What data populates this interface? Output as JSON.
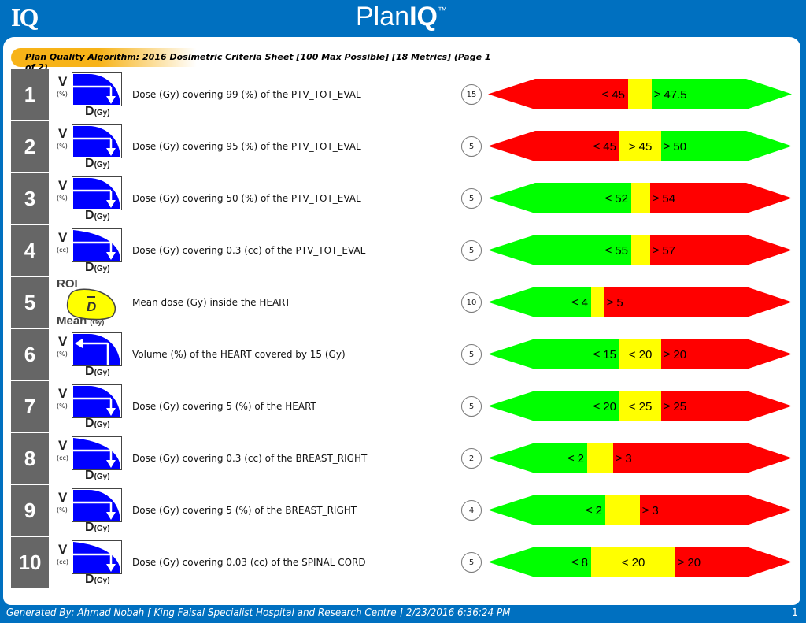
{
  "header": {
    "logo": "IQ",
    "brand_plan": "Plan",
    "brand_iq": "IQ",
    "brand_tm": "™"
  },
  "sheet_title": "Plan Quality Algorithm: 2016 Dosimetric Criteria Sheet [100 Max Possible] [18 Metrics] (Page 1 of 2)",
  "labels": {
    "v": "V",
    "d": "D",
    "gy": "(Gy)",
    "roi": "ROI",
    "mean": "Mean",
    "dbar": "D"
  },
  "colors": {
    "red": "#ff0000",
    "yellow": "#ffff00",
    "green": "#00ff00",
    "brand_blue": "#0070c0",
    "icon_blue": "#0000ff"
  },
  "metrics": [
    {
      "num": "1",
      "icon": "dvh-dose-icon",
      "unit": "(%)",
      "description": "Dose (Gy) covering 99 (%) of the PTV_TOT_EVAL",
      "score": "15",
      "order": "red-yellow-green",
      "low_label": "≤ 45",
      "mid_label": "",
      "high_label": "≥ 47.5"
    },
    {
      "num": "2",
      "icon": "dvh-dose-icon",
      "unit": "(%)",
      "description": "Dose (Gy) covering 95 (%) of the PTV_TOT_EVAL",
      "score": "5",
      "order": "red-yellow-green",
      "low_label": "≤ 45",
      "mid_label": "> 45",
      "high_label": "≥ 50"
    },
    {
      "num": "3",
      "icon": "dvh-dose-icon",
      "unit": "(%)",
      "description": "Dose (Gy) covering 50 (%) of the PTV_TOT_EVAL",
      "score": "5",
      "order": "green-yellow-red",
      "low_label": "≤ 52",
      "mid_label": "",
      "high_label": "≥ 54"
    },
    {
      "num": "4",
      "icon": "dvh-dose-cc-icon",
      "unit": "(cc)",
      "description": "Dose (Gy) covering 0.3 (cc) of the PTV_TOT_EVAL",
      "score": "5",
      "order": "green-yellow-red",
      "low_label": "≤ 55",
      "mid_label": "",
      "high_label": "≥ 57"
    },
    {
      "num": "5",
      "icon": "mean-dose-roi-icon",
      "unit": "",
      "description": "Mean dose (Gy) inside the HEART",
      "score": "10",
      "order": "green-yellow-red",
      "low_label": "≤ 4",
      "mid_label": "",
      "high_label": "≥ 5"
    },
    {
      "num": "6",
      "icon": "dvh-volume-icon",
      "unit": "(%)",
      "description": "Volume (%) of the HEART covered by 15 (Gy)",
      "score": "5",
      "order": "green-yellow-red",
      "low_label": "≤ 15",
      "mid_label": "< 20",
      "high_label": "≥ 20"
    },
    {
      "num": "7",
      "icon": "dvh-dose-icon",
      "unit": "(%)",
      "description": "Dose (Gy) covering 5 (%) of the HEART",
      "score": "5",
      "order": "green-yellow-red",
      "low_label": "≤ 20",
      "mid_label": "< 25",
      "high_label": "≥ 25"
    },
    {
      "num": "8",
      "icon": "dvh-dose-cc-icon",
      "unit": "(cc)",
      "description": "Dose (Gy) covering 0.3 (cc) of the BREAST_RIGHT",
      "score": "2",
      "order": "green-yellow-red",
      "low_label": "≤ 2",
      "mid_label": "",
      "high_label": "≥ 3"
    },
    {
      "num": "9",
      "icon": "dvh-dose-icon",
      "unit": "(%)",
      "description": "Dose (Gy) covering 5 (%) of the BREAST_RIGHT",
      "score": "4",
      "order": "green-yellow-red",
      "low_label": "≤ 2",
      "mid_label": "",
      "high_label": "≥ 3"
    },
    {
      "num": "10",
      "icon": "dvh-dose-cc-icon",
      "unit": "(cc)",
      "description": "Dose (Gy) covering 0.03 (cc) of the SPINAL CORD",
      "score": "5",
      "order": "green-yellow-red",
      "low_label": "≤ 8",
      "mid_label": "< 20",
      "high_label": "≥ 20"
    }
  ],
  "footer": {
    "generated_by": "Generated By: Ahmad Nobah [ King Faisal Specialist Hospital and Research Centre ] 2/23/2016 6:36:24 PM",
    "page": "1"
  }
}
